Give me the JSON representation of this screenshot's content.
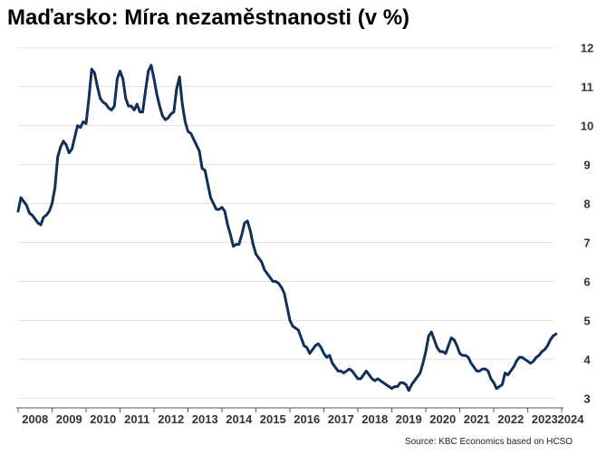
{
  "chart_data": {
    "type": "line",
    "title": "Maďarsko: Míra nezaměstnanosti (v %)",
    "source": "Source: KBC Economics based on HCSO",
    "xlabel": "",
    "ylabel": "",
    "x_ticks": [
      "2008",
      "2009",
      "2010",
      "2011",
      "2012",
      "2013",
      "2014",
      "2015",
      "2016",
      "2017",
      "2018",
      "2019",
      "2020",
      "2021",
      "2022",
      "2023",
      "2024"
    ],
    "y_ticks": [
      3,
      4,
      5,
      6,
      7,
      8,
      9,
      10,
      11,
      12
    ],
    "ylim": [
      2.8,
      12.2
    ],
    "xlim": [
      "2008-01",
      "2024-01"
    ],
    "grid": "horizontal",
    "y_axis_position": "right",
    "line_color": "#10305a",
    "series": [
      {
        "points": [
          [
            "2008-01",
            7.8
          ],
          [
            "2008-02",
            8.15
          ],
          [
            "2008-03",
            8.05
          ],
          [
            "2008-04",
            7.95
          ],
          [
            "2008-05",
            7.75
          ],
          [
            "2008-06",
            7.7
          ],
          [
            "2008-07",
            7.6
          ],
          [
            "2008-08",
            7.5
          ],
          [
            "2008-09",
            7.45
          ],
          [
            "2008-10",
            7.65
          ],
          [
            "2008-11",
            7.7
          ],
          [
            "2008-12",
            7.8
          ],
          [
            "2009-01",
            8.0
          ],
          [
            "2009-02",
            8.4
          ],
          [
            "2009-03",
            9.2
          ],
          [
            "2009-04",
            9.45
          ],
          [
            "2009-05",
            9.6
          ],
          [
            "2009-06",
            9.5
          ],
          [
            "2009-07",
            9.3
          ],
          [
            "2009-08",
            9.4
          ],
          [
            "2009-09",
            9.7
          ],
          [
            "2009-10",
            10.0
          ],
          [
            "2009-11",
            9.95
          ],
          [
            "2009-12",
            10.1
          ],
          [
            "2010-01",
            10.05
          ],
          [
            "2010-02",
            10.7
          ],
          [
            "2010-03",
            11.45
          ],
          [
            "2010-04",
            11.35
          ],
          [
            "2010-05",
            11.0
          ],
          [
            "2010-06",
            10.7
          ],
          [
            "2010-07",
            10.6
          ],
          [
            "2010-08",
            10.55
          ],
          [
            "2010-09",
            10.45
          ],
          [
            "2010-10",
            10.4
          ],
          [
            "2010-11",
            10.5
          ],
          [
            "2010-12",
            11.2
          ],
          [
            "2011-01",
            11.4
          ],
          [
            "2011-02",
            11.2
          ],
          [
            "2011-03",
            10.7
          ],
          [
            "2011-04",
            10.5
          ],
          [
            "2011-05",
            10.5
          ],
          [
            "2011-06",
            10.4
          ],
          [
            "2011-07",
            10.55
          ],
          [
            "2011-08",
            10.35
          ],
          [
            "2011-09",
            10.35
          ],
          [
            "2011-10",
            10.9
          ],
          [
            "2011-11",
            11.4
          ],
          [
            "2011-12",
            11.55
          ],
          [
            "2012-01",
            11.2
          ],
          [
            "2012-02",
            10.8
          ],
          [
            "2012-03",
            10.5
          ],
          [
            "2012-04",
            10.25
          ],
          [
            "2012-05",
            10.15
          ],
          [
            "2012-06",
            10.2
          ],
          [
            "2012-07",
            10.3
          ],
          [
            "2012-08",
            10.35
          ],
          [
            "2012-09",
            10.95
          ],
          [
            "2012-10",
            11.25
          ],
          [
            "2012-11",
            10.55
          ],
          [
            "2012-12",
            10.1
          ],
          [
            "2013-01",
            9.85
          ],
          [
            "2013-02",
            9.8
          ],
          [
            "2013-03",
            9.65
          ],
          [
            "2013-04",
            9.5
          ],
          [
            "2013-05",
            9.35
          ],
          [
            "2013-06",
            8.9
          ],
          [
            "2013-07",
            8.85
          ],
          [
            "2013-08",
            8.5
          ],
          [
            "2013-09",
            8.15
          ],
          [
            "2013-10",
            8.0
          ],
          [
            "2013-11",
            7.85
          ],
          [
            "2013-12",
            7.85
          ],
          [
            "2014-01",
            7.9
          ],
          [
            "2014-02",
            7.8
          ],
          [
            "2014-03",
            7.45
          ],
          [
            "2014-04",
            7.2
          ],
          [
            "2014-05",
            6.9
          ],
          [
            "2014-06",
            6.95
          ],
          [
            "2014-07",
            6.95
          ],
          [
            "2014-08",
            7.2
          ],
          [
            "2014-09",
            7.5
          ],
          [
            "2014-10",
            7.55
          ],
          [
            "2014-11",
            7.3
          ],
          [
            "2014-12",
            6.95
          ],
          [
            "2015-01",
            6.7
          ],
          [
            "2015-02",
            6.6
          ],
          [
            "2015-03",
            6.5
          ],
          [
            "2015-04",
            6.3
          ],
          [
            "2015-05",
            6.2
          ],
          [
            "2015-06",
            6.1
          ],
          [
            "2015-07",
            6.0
          ],
          [
            "2015-08",
            6.0
          ],
          [
            "2015-09",
            5.95
          ],
          [
            "2015-10",
            5.85
          ],
          [
            "2015-11",
            5.7
          ],
          [
            "2015-12",
            5.35
          ],
          [
            "2016-01",
            5.0
          ],
          [
            "2016-02",
            4.85
          ],
          [
            "2016-03",
            4.8
          ],
          [
            "2016-04",
            4.75
          ],
          [
            "2016-05",
            4.55
          ],
          [
            "2016-06",
            4.35
          ],
          [
            "2016-07",
            4.3
          ],
          [
            "2016-08",
            4.15
          ],
          [
            "2016-09",
            4.25
          ],
          [
            "2016-10",
            4.35
          ],
          [
            "2016-11",
            4.4
          ],
          [
            "2016-12",
            4.3
          ],
          [
            "2017-01",
            4.15
          ],
          [
            "2017-02",
            4.05
          ],
          [
            "2017-03",
            4.1
          ],
          [
            "2017-04",
            3.9
          ],
          [
            "2017-05",
            3.8
          ],
          [
            "2017-06",
            3.7
          ],
          [
            "2017-07",
            3.7
          ],
          [
            "2017-08",
            3.65
          ],
          [
            "2017-09",
            3.7
          ],
          [
            "2017-10",
            3.75
          ],
          [
            "2017-11",
            3.7
          ],
          [
            "2017-12",
            3.6
          ],
          [
            "2018-01",
            3.5
          ],
          [
            "2018-02",
            3.5
          ],
          [
            "2018-03",
            3.6
          ],
          [
            "2018-04",
            3.7
          ],
          [
            "2018-05",
            3.6
          ],
          [
            "2018-06",
            3.5
          ],
          [
            "2018-07",
            3.45
          ],
          [
            "2018-08",
            3.5
          ],
          [
            "2018-09",
            3.45
          ],
          [
            "2018-10",
            3.4
          ],
          [
            "2018-11",
            3.35
          ],
          [
            "2018-12",
            3.3
          ],
          [
            "2019-01",
            3.25
          ],
          [
            "2019-02",
            3.3
          ],
          [
            "2019-03",
            3.3
          ],
          [
            "2019-04",
            3.4
          ],
          [
            "2019-05",
            3.4
          ],
          [
            "2019-06",
            3.35
          ],
          [
            "2019-07",
            3.2
          ],
          [
            "2019-08",
            3.35
          ],
          [
            "2019-09",
            3.45
          ],
          [
            "2019-10",
            3.55
          ],
          [
            "2019-11",
            3.65
          ],
          [
            "2019-12",
            3.9
          ],
          [
            "2020-01",
            4.2
          ],
          [
            "2020-02",
            4.6
          ],
          [
            "2020-03",
            4.7
          ],
          [
            "2020-04",
            4.5
          ],
          [
            "2020-05",
            4.3
          ],
          [
            "2020-06",
            4.2
          ],
          [
            "2020-07",
            4.2
          ],
          [
            "2020-08",
            4.15
          ],
          [
            "2020-09",
            4.35
          ],
          [
            "2020-10",
            4.55
          ],
          [
            "2020-11",
            4.5
          ],
          [
            "2020-12",
            4.35
          ],
          [
            "2021-01",
            4.15
          ],
          [
            "2021-02",
            4.1
          ],
          [
            "2021-03",
            4.1
          ],
          [
            "2021-04",
            4.05
          ],
          [
            "2021-05",
            3.9
          ],
          [
            "2021-06",
            3.8
          ],
          [
            "2021-07",
            3.7
          ],
          [
            "2021-08",
            3.7
          ],
          [
            "2021-09",
            3.75
          ],
          [
            "2021-10",
            3.75
          ],
          [
            "2021-11",
            3.7
          ],
          [
            "2021-12",
            3.5
          ],
          [
            "2022-01",
            3.4
          ],
          [
            "2022-02",
            3.25
          ],
          [
            "2022-03",
            3.3
          ],
          [
            "2022-04",
            3.35
          ],
          [
            "2022-05",
            3.65
          ],
          [
            "2022-06",
            3.6
          ],
          [
            "2022-07",
            3.7
          ],
          [
            "2022-08",
            3.8
          ],
          [
            "2022-09",
            3.95
          ],
          [
            "2022-10",
            4.05
          ],
          [
            "2022-11",
            4.05
          ],
          [
            "2022-12",
            4.0
          ],
          [
            "2023-01",
            3.95
          ],
          [
            "2023-02",
            3.9
          ],
          [
            "2023-03",
            3.95
          ],
          [
            "2023-04",
            4.05
          ],
          [
            "2023-05",
            4.1
          ],
          [
            "2023-06",
            4.2
          ],
          [
            "2023-07",
            4.25
          ],
          [
            "2023-08",
            4.35
          ],
          [
            "2023-09",
            4.5
          ],
          [
            "2023-10",
            4.6
          ],
          [
            "2023-11",
            4.65
          ]
        ]
      }
    ]
  }
}
